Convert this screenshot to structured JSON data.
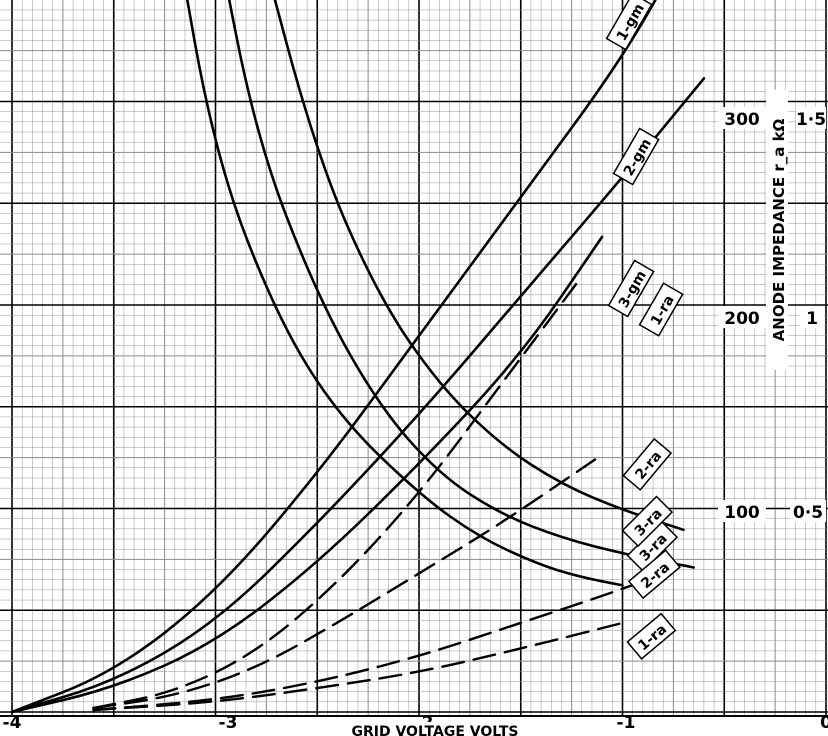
{
  "chart_data": {
    "type": "line",
    "xlabel": "GRID VOLTAGE VOLTS",
    "ylabel": "ANODE IMPEDANCE r_a kΩ",
    "xlim": [
      -4,
      0
    ],
    "x_ticks": [
      "-4",
      "-3",
      "-2",
      "-1",
      "0"
    ],
    "right_ticks": {
      "impedance": [
        "100",
        "200",
        "300"
      ],
      "secondary": [
        "0·5",
        "1",
        "1·5"
      ]
    },
    "grid": true,
    "series": [
      {
        "name": "1-gm",
        "style": "solid",
        "x": [
          -4.0,
          -3.5,
          -3.0,
          -2.5,
          -2.0,
          -1.5,
          -1.0,
          -0.7
        ],
        "y": [
          0,
          20,
          60,
          120,
          190,
          260,
          330,
          385
        ]
      },
      {
        "name": "2-gm",
        "style": "solid",
        "x": [
          -4.0,
          -3.5,
          -3.0,
          -2.5,
          -2.0,
          -1.5,
          -1.0,
          -0.6
        ],
        "y": [
          0,
          15,
          45,
          95,
          150,
          210,
          270,
          320
        ]
      },
      {
        "name": "3-gm",
        "style": "solid",
        "x": [
          -4.0,
          -3.5,
          -3.0,
          -2.5,
          -2.0,
          -1.5,
          -1.1
        ],
        "y": [
          0,
          12,
          35,
          75,
          125,
          180,
          240
        ]
      },
      {
        "name": "1-ra",
        "style": "dashed",
        "x": [
          -3.6,
          -3.2,
          -2.8,
          -2.4,
          -2.0,
          -1.6,
          -1.2
        ],
        "y": [
          2,
          10,
          30,
          65,
          110,
          165,
          220
        ]
      },
      {
        "name": "2-ra",
        "style": "dashed",
        "x": [
          -3.6,
          -3.2,
          -2.8,
          -2.4,
          -2.0,
          -1.6,
          -1.1
        ],
        "y": [
          2,
          8,
          22,
          45,
          70,
          95,
          130
        ]
      },
      {
        "name": "3-ra",
        "style": "dashed",
        "x": [
          -3.6,
          -3.0,
          -2.5,
          -2.0,
          -1.5,
          -1.0,
          -0.75
        ],
        "y": [
          1,
          6,
          15,
          28,
          45,
          62,
          72
        ]
      },
      {
        "name": "1-ra",
        "style": "dashed",
        "x": [
          -3.6,
          -3.0,
          -2.5,
          -2.0,
          -1.5,
          -1.0
        ],
        "y": [
          1,
          5,
          12,
          20,
          32,
          45
        ]
      },
      {
        "name": "1-ra",
        "style": "solid",
        "x": [
          -3.2,
          -3.0,
          -2.7,
          -2.4,
          -2.0,
          -1.7,
          -1.4,
          -1.2,
          -1.0
        ],
        "y": [
          395,
          280,
          200,
          150,
          110,
          88,
          74,
          68,
          64
        ]
      },
      {
        "name": "2-ra",
        "style": "solid",
        "x": [
          -3.0,
          -2.8,
          -2.5,
          -2.2,
          -1.9,
          -1.6,
          -1.3,
          -1.0,
          -0.65
        ],
        "y": [
          395,
          290,
          210,
          155,
          120,
          100,
          88,
          80,
          73
        ]
      },
      {
        "name": "3-ra",
        "style": "solid",
        "x": [
          -2.8,
          -2.5,
          -2.2,
          -1.9,
          -1.6,
          -1.3,
          -1.0,
          -0.7
        ],
        "y": [
          395,
          280,
          210,
          165,
          135,
          115,
          102,
          92
        ]
      }
    ]
  },
  "labels": {
    "l1gm": "1-gm",
    "l2gm": "2-gm",
    "l3gm": "3-gm",
    "l1ra_d": "1-ra",
    "l2ra_d": "2-ra",
    "l3ra_d": "3-ra",
    "l1ra_s": "1-ra",
    "l2ra_s": "2-ra",
    "l3ra_s": "3-ra"
  },
  "colors": {
    "grid": "#8a8a8a",
    "ink": "#000000",
    "paper": "#ffffff"
  }
}
